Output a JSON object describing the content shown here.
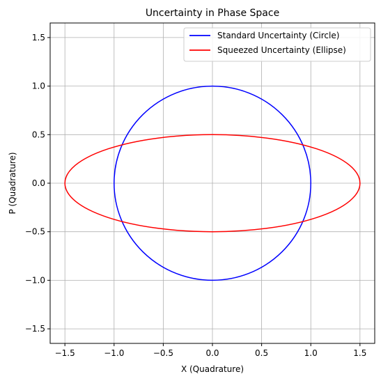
{
  "chart_data": {
    "type": "line",
    "title": "Uncertainty in Phase Space",
    "xlabel": "X (Quadrature)",
    "ylabel": "P (Quadrature)",
    "xlim": [
      -1.65,
      1.65
    ],
    "ylim": [
      -1.65,
      1.65
    ],
    "xticks": [
      -1.5,
      -1.0,
      -0.5,
      0.0,
      0.5,
      1.0,
      1.5
    ],
    "yticks": [
      -1.5,
      -1.0,
      -0.5,
      0.0,
      0.5,
      1.0,
      1.5
    ],
    "xtick_labels": [
      "−1.5",
      "−1.0",
      "−0.5",
      "0.0",
      "0.5",
      "1.0",
      "1.5"
    ],
    "ytick_labels": [
      "−1.5",
      "−1.0",
      "−0.5",
      "0.0",
      "0.5",
      "1.0",
      "1.5"
    ],
    "grid": true,
    "legend_position": "top-right",
    "series": [
      {
        "name": "Standard Uncertainty (Circle)",
        "shape": "ellipse",
        "center": [
          0,
          0
        ],
        "x_radius": 1.0,
        "y_radius": 1.0,
        "color": "#0000ff"
      },
      {
        "name": "Squeezed Uncertainty (Ellipse)",
        "shape": "ellipse",
        "center": [
          0,
          0
        ],
        "x_radius": 1.5,
        "y_radius": 0.5,
        "color": "#ff0000"
      }
    ]
  }
}
